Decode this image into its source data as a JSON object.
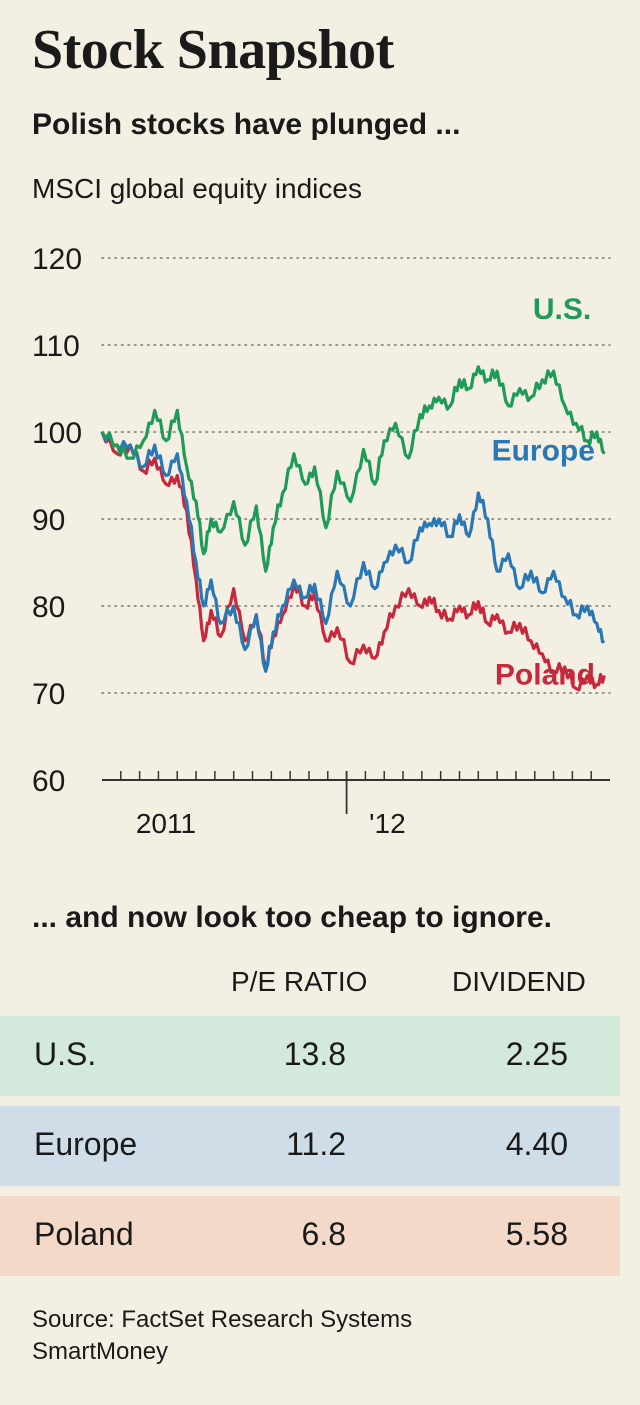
{
  "title": "Stock Snapshot",
  "subtitle": "Polish stocks have plunged ...",
  "chart_data": {
    "type": "line",
    "title": "MSCI global equity indices",
    "ylim": [
      60,
      120
    ],
    "yticks": [
      60,
      70,
      80,
      90,
      100,
      110,
      120
    ],
    "ytick_labels": [
      "60",
      "70",
      "80",
      "90",
      "100",
      "110",
      "120"
    ],
    "xlim": [
      0,
      27
    ],
    "x_tick_labels": [
      {
        "label": "2011",
        "x": 1.8
      },
      {
        "label": "'12",
        "x": 14.2
      }
    ],
    "series": [
      {
        "name": "U.S.",
        "color": "#1f9a57",
        "label_at": [
          26.0,
          113
        ],
        "x": [
          0,
          0.8,
          1.5,
          2.2,
          2.8,
          3.4,
          4.0,
          4.5,
          5.0,
          5.4,
          5.8,
          6.3,
          7.0,
          7.6,
          8.2,
          8.7,
          9.1,
          9.6,
          10.2,
          10.8,
          11.3,
          11.9,
          12.5,
          13.2,
          13.9,
          14.5,
          15.0,
          15.6,
          16.3,
          16.9,
          17.4,
          17.9,
          18.5,
          19.0,
          19.5,
          20.0,
          20.5,
          21.0,
          21.6,
          22.2,
          22.8,
          23.4,
          24.0,
          24.6,
          25.2,
          25.8,
          26.3,
          26.7
        ],
        "values": [
          100,
          98.5,
          97,
          99,
          102.5,
          99,
          102.5,
          96,
          92,
          86,
          90,
          88.5,
          92,
          87,
          91.5,
          84,
          89,
          93,
          97.5,
          94,
          96,
          89,
          95.5,
          92,
          98,
          94,
          99,
          101,
          97,
          102,
          103,
          104,
          103,
          106,
          105,
          107.5,
          106,
          107,
          103,
          105,
          104,
          106,
          107,
          103,
          101,
          99,
          100,
          97.5
        ]
      },
      {
        "name": "Europe",
        "color": "#2a77b5",
        "label_at": [
          26.2,
          96.7
        ],
        "x": [
          0,
          0.8,
          1.5,
          2.2,
          2.8,
          3.4,
          4.0,
          4.5,
          5.0,
          5.4,
          5.8,
          6.3,
          7.0,
          7.6,
          8.2,
          8.7,
          9.1,
          9.6,
          10.2,
          10.8,
          11.3,
          11.9,
          12.5,
          13.2,
          13.9,
          14.5,
          15.0,
          15.6,
          16.3,
          16.9,
          17.4,
          17.9,
          18.5,
          19.0,
          19.5,
          20.0,
          20.5,
          21.0,
          21.6,
          22.2,
          22.8,
          23.4,
          24.0,
          24.6,
          25.2,
          25.8,
          26.3,
          26.7
        ],
        "values": [
          100,
          98.5,
          98.5,
          96,
          98.5,
          95,
          97.5,
          92,
          85,
          80,
          83,
          78,
          80,
          75,
          79,
          72.5,
          77,
          80,
          83,
          81,
          82.5,
          78,
          84,
          80,
          85,
          82,
          85,
          87,
          85,
          89,
          89.5,
          90,
          88,
          90.5,
          88,
          93,
          90,
          84,
          86,
          82,
          84,
          81.5,
          84,
          81,
          79,
          80,
          78,
          76
        ]
      },
      {
        "name": "Poland",
        "color": "#c8283b",
        "label_at": [
          26.2,
          71
        ],
        "x": [
          0,
          0.8,
          1.5,
          2.2,
          2.8,
          3.4,
          4.0,
          4.5,
          5.0,
          5.4,
          5.8,
          6.3,
          7.0,
          7.6,
          8.2,
          8.7,
          9.1,
          9.6,
          10.2,
          10.8,
          11.3,
          11.9,
          12.5,
          13.2,
          13.9,
          14.5,
          15.0,
          15.6,
          16.3,
          16.9,
          17.4,
          17.9,
          18.5,
          19.0,
          19.5,
          20.0,
          20.5,
          21.0,
          21.6,
          22.2,
          22.8,
          23.4,
          24.0,
          24.6,
          25.2,
          25.8,
          26.3,
          26.7
        ],
        "values": [
          100,
          97.5,
          98.5,
          95.5,
          97,
          94,
          95,
          91,
          83,
          76,
          79.5,
          76.5,
          82,
          76,
          79,
          73,
          76.5,
          79,
          82.5,
          80,
          81.5,
          76,
          77.5,
          73.5,
          75.5,
          74,
          77,
          80,
          82,
          80,
          81,
          79.5,
          78.5,
          80,
          79,
          80.5,
          78,
          79,
          77,
          78,
          76,
          74.5,
          72.5,
          73,
          70.5,
          72,
          71,
          72
        ]
      }
    ]
  },
  "table": {
    "subtitle": "... and now look too cheap to ignore.",
    "columns": [
      "P/E RATIO",
      "DIVIDEND"
    ],
    "rows": [
      {
        "name": "U.S.",
        "pe": "13.8",
        "dividend": "2.25",
        "bg": "#d3e9db"
      },
      {
        "name": "Europe",
        "pe": "11.2",
        "dividend": "4.40",
        "bg": "#cfdde9"
      },
      {
        "name": "Poland",
        "pe": "6.8",
        "dividend": "5.58",
        "bg": "#f4d9c9"
      }
    ]
  },
  "footer": {
    "source": "Source: FactSet Research Systems",
    "publisher": "SmartMoney"
  }
}
